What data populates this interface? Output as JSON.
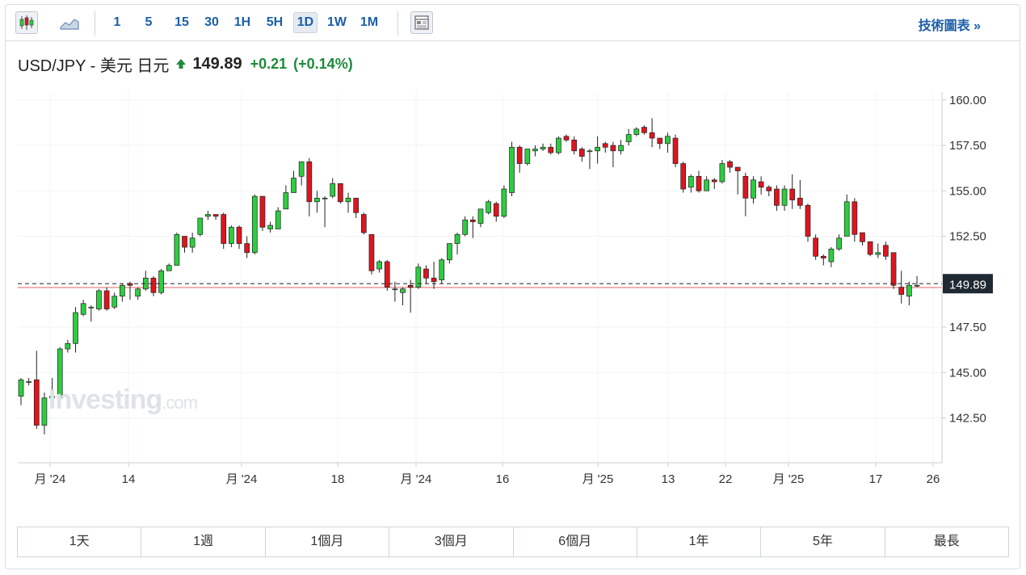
{
  "toolbar": {
    "intervals": [
      "1",
      "5",
      "15",
      "30",
      "1H",
      "5H",
      "1D",
      "1W",
      "1M"
    ],
    "active_interval": "1D",
    "tech_chart_label": "技術圖表 »"
  },
  "quote": {
    "symbol": "USD/JPY - 美元 日元",
    "price": "149.89",
    "change": "+0.21",
    "change_pct": "(+0.14%)",
    "up_color": "#1d8a3c"
  },
  "watermark": {
    "brand": "Investing",
    "suffix": ".com"
  },
  "ranges": [
    "1天",
    "1週",
    "1個月",
    "3個月",
    "6個月",
    "1年",
    "5年",
    "最長"
  ],
  "colors": {
    "up": "#2ecc40",
    "down": "#e0141e"
  },
  "chart_data": {
    "type": "candlestick",
    "y_ticks": [
      "160.00",
      "157.50",
      "155.00",
      "152.50",
      "150.00",
      "147.50",
      "145.00",
      "142.50"
    ],
    "ylim": [
      140.0,
      161.0
    ],
    "x_tick_labels": [
      "月 '24",
      "14",
      "月 '24",
      "18",
      "月 '24",
      "16",
      "月 '25",
      "13",
      "22",
      "月 '25",
      "17",
      "26"
    ],
    "last_price_label": "149.89",
    "last_price": 149.89,
    "reference_price": 149.68,
    "candles": [
      [
        143.7,
        144.6,
        143.2,
        144.7
      ],
      [
        144.5,
        144.5,
        144.3,
        144.7
      ],
      [
        144.6,
        142.1,
        141.9,
        146.2
      ],
      [
        142.1,
        143.6,
        141.6,
        143.9
      ],
      [
        143.6,
        143.7,
        143.2,
        144.7
      ],
      [
        143.6,
        146.3,
        143.5,
        146.4
      ],
      [
        146.3,
        146.6,
        146.1,
        146.8
      ],
      [
        146.6,
        148.3,
        146.1,
        148.6
      ],
      [
        148.2,
        148.8,
        148.1,
        149.0
      ],
      [
        148.6,
        148.6,
        147.8,
        148.7
      ],
      [
        148.5,
        149.5,
        148.4,
        149.6
      ],
      [
        149.5,
        148.5,
        148.4,
        149.7
      ],
      [
        148.6,
        149.2,
        148.5,
        149.4
      ],
      [
        149.2,
        149.8,
        148.9,
        149.9
      ],
      [
        149.9,
        149.8,
        149.0,
        150.0
      ],
      [
        149.2,
        149.6,
        149.0,
        149.7
      ],
      [
        149.6,
        150.2,
        149.5,
        150.6
      ],
      [
        150.2,
        149.4,
        149.2,
        150.3
      ],
      [
        149.4,
        150.6,
        149.3,
        150.7
      ],
      [
        150.6,
        150.9,
        150.6,
        151.0
      ],
      [
        150.9,
        152.6,
        150.9,
        152.7
      ],
      [
        152.5,
        151.9,
        151.6,
        152.5
      ],
      [
        151.9,
        152.4,
        151.6,
        152.7
      ],
      [
        152.6,
        153.5,
        152.5,
        153.5
      ],
      [
        153.6,
        153.7,
        153.4,
        153.9
      ],
      [
        153.7,
        153.6,
        153.4,
        153.6
      ],
      [
        153.7,
        152.1,
        151.8,
        153.8
      ],
      [
        152.1,
        153.0,
        151.9,
        153.1
      ],
      [
        153.0,
        152.1,
        151.8,
        153.1
      ],
      [
        152.1,
        151.6,
        151.3,
        152.5
      ],
      [
        151.6,
        154.7,
        151.5,
        154.8
      ],
      [
        154.7,
        153.0,
        152.8,
        154.7
      ],
      [
        152.9,
        153.1,
        152.7,
        153.3
      ],
      [
        152.9,
        153.9,
        152.9,
        154.1
      ],
      [
        154.0,
        154.9,
        154.0,
        155.3
      ],
      [
        154.9,
        155.7,
        154.9,
        156.1
      ],
      [
        155.8,
        156.6,
        155.3,
        156.6
      ],
      [
        156.6,
        154.4,
        153.6,
        156.8
      ],
      [
        154.4,
        154.6,
        153.8,
        155.0
      ],
      [
        154.6,
        154.6,
        153.0,
        154.7
      ],
      [
        154.7,
        155.4,
        154.6,
        155.7
      ],
      [
        155.4,
        154.4,
        154.3,
        155.2
      ],
      [
        154.4,
        154.6,
        153.8,
        154.9
      ],
      [
        154.6,
        153.8,
        153.5,
        154.4
      ],
      [
        153.7,
        152.7,
        152.6,
        153.8
      ],
      [
        152.6,
        150.6,
        150.4,
        152.6
      ],
      [
        150.7,
        151.1,
        150.5,
        151.2
      ],
      [
        151.1,
        149.7,
        149.5,
        151.2
      ],
      [
        149.6,
        149.6,
        148.9,
        150.0
      ],
      [
        149.4,
        149.6,
        148.7,
        149.7
      ],
      [
        149.8,
        149.7,
        148.3,
        150.1
      ],
      [
        149.7,
        150.8,
        149.6,
        151.0
      ],
      [
        150.7,
        150.2,
        149.9,
        150.9
      ],
      [
        150.2,
        150.0,
        149.6,
        151.1
      ],
      [
        150.1,
        151.2,
        149.9,
        151.3
      ],
      [
        151.2,
        152.1,
        151.0,
        152.0
      ],
      [
        152.1,
        152.6,
        151.5,
        152.7
      ],
      [
        152.6,
        153.4,
        152.5,
        153.6
      ],
      [
        153.4,
        153.3,
        152.4,
        153.6
      ],
      [
        153.2,
        154.0,
        153.0,
        154.0
      ],
      [
        153.8,
        154.4,
        153.7,
        154.5
      ],
      [
        154.3,
        153.6,
        153.3,
        154.4
      ],
      [
        153.6,
        155.1,
        153.5,
        155.3
      ],
      [
        154.9,
        157.4,
        154.7,
        157.7
      ],
      [
        157.4,
        156.5,
        156.0,
        157.5
      ],
      [
        156.5,
        157.3,
        156.4,
        157.3
      ],
      [
        157.2,
        157.3,
        156.9,
        157.5
      ],
      [
        157.3,
        157.4,
        157.2,
        157.6
      ],
      [
        157.4,
        157.1,
        157.0,
        157.6
      ],
      [
        157.1,
        157.9,
        157.0,
        158.0
      ],
      [
        158.0,
        157.8,
        157.7,
        158.1
      ],
      [
        157.8,
        157.2,
        157.0,
        158.0
      ],
      [
        157.3,
        156.9,
        156.6,
        157.4
      ],
      [
        157.2,
        157.2,
        156.2,
        157.3
      ],
      [
        157.2,
        157.4,
        156.5,
        158.0
      ],
      [
        157.6,
        157.4,
        157.1,
        157.7
      ],
      [
        157.5,
        157.2,
        156.3,
        157.7
      ],
      [
        157.2,
        157.5,
        157.0,
        157.8
      ],
      [
        157.7,
        158.1,
        157.5,
        158.4
      ],
      [
        158.1,
        158.4,
        158.0,
        158.5
      ],
      [
        158.5,
        158.2,
        158.1,
        158.6
      ],
      [
        158.2,
        157.9,
        157.4,
        159.0
      ],
      [
        157.9,
        157.6,
        157.3,
        157.8
      ],
      [
        157.6,
        158.0,
        157.1,
        158.2
      ],
      [
        157.9,
        156.5,
        156.3,
        158.1
      ],
      [
        156.5,
        155.1,
        154.9,
        156.6
      ],
      [
        155.2,
        155.8,
        154.9,
        155.9
      ],
      [
        155.8,
        155.0,
        154.9,
        156.1
      ],
      [
        155.0,
        155.6,
        155.2,
        155.8
      ],
      [
        155.6,
        155.5,
        155.1,
        155.7
      ],
      [
        155.5,
        156.5,
        155.4,
        156.7
      ],
      [
        156.6,
        156.3,
        156.0,
        156.7
      ],
      [
        156.3,
        156.1,
        154.8,
        156.2
      ],
      [
        155.8,
        154.6,
        153.6,
        156.0
      ],
      [
        154.6,
        155.6,
        154.3,
        155.8
      ],
      [
        155.5,
        155.2,
        154.8,
        155.8
      ],
      [
        155.2,
        155.0,
        154.7,
        155.3
      ],
      [
        155.1,
        154.2,
        153.9,
        155.3
      ],
      [
        154.2,
        155.1,
        153.9,
        155.3
      ],
      [
        155.1,
        154.5,
        154.0,
        155.9
      ],
      [
        154.6,
        154.2,
        154.0,
        155.6
      ],
      [
        154.2,
        152.5,
        152.2,
        154.3
      ],
      [
        152.4,
        151.4,
        151.2,
        152.6
      ],
      [
        151.4,
        151.3,
        150.9,
        151.5
      ],
      [
        151.1,
        151.8,
        150.8,
        151.9
      ],
      [
        151.8,
        152.4,
        151.7,
        152.6
      ],
      [
        152.5,
        154.4,
        152.5,
        154.8
      ],
      [
        154.4,
        152.6,
        152.2,
        154.6
      ],
      [
        152.7,
        152.2,
        152.0,
        152.7
      ],
      [
        152.2,
        151.5,
        151.4,
        152.2
      ],
      [
        151.5,
        151.6,
        151.3,
        152.1
      ],
      [
        152.0,
        151.4,
        151.2,
        152.2
      ],
      [
        151.6,
        149.8,
        149.6,
        151.6
      ],
      [
        149.7,
        149.3,
        148.8,
        150.6
      ],
      [
        149.2,
        149.8,
        148.7,
        150.0
      ],
      [
        149.8,
        149.8,
        149.7,
        150.3
      ]
    ]
  }
}
